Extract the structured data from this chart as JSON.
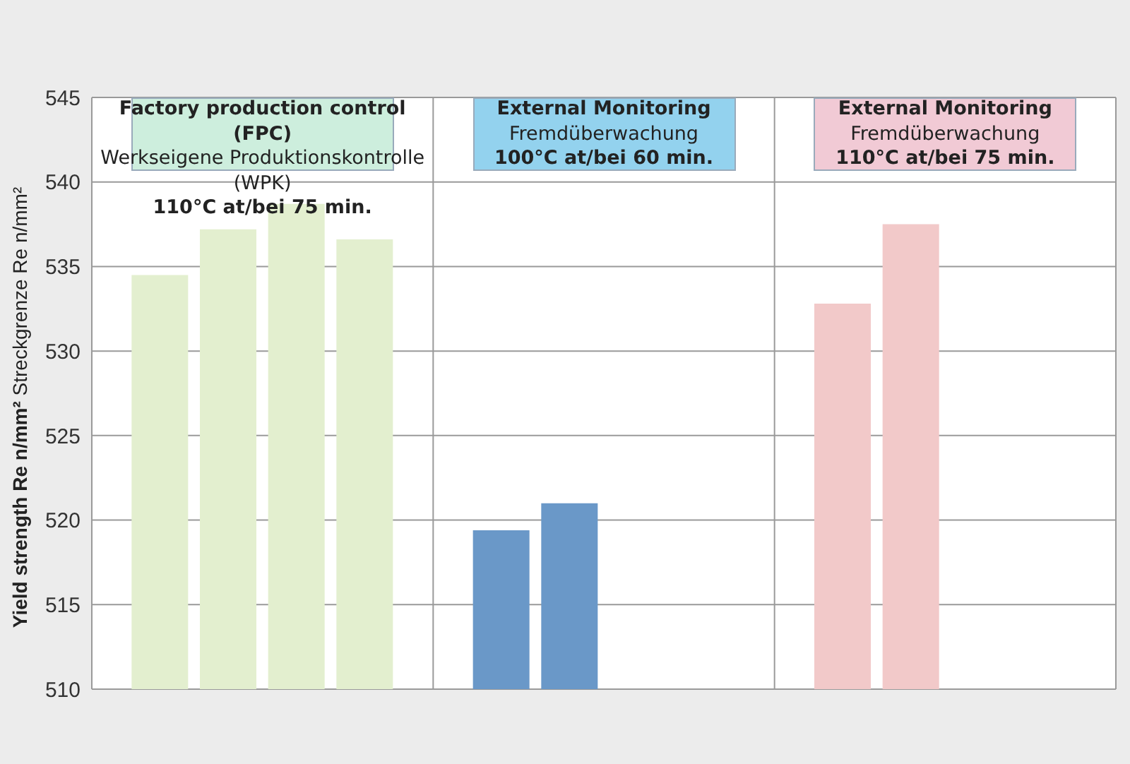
{
  "chart_data": {
    "type": "bar",
    "ylabel": "Yield strength Re n/mm²\nStreckgrenze Re n/mm²",
    "annotations": [
      "Factory production control (FPC)\nWerkseigene Produktionskontrolle\n(WPK)\n110°C at/bei 75 min.",
      "External Monitoring\nFremdüberwachung\n100°C at/bei 60 min.",
      "External Monitoring\nFremdüberwachung\n110°C at/bei 75 min."
    ],
    "categories": [
      null,
      null,
      null,
      null,
      null,
      null,
      null,
      null,
      null,
      null,
      null,
      null,
      null,
      null,
      null
    ],
    "values": [
      534.5,
      537.2,
      538.7,
      536.6,
      null,
      519.4,
      521.0,
      null,
      null,
      null,
      532.8,
      537.5,
      null,
      null,
      null
    ],
    "colors": [
      "#e3efcf",
      "#e3efcf",
      "#e3efcf",
      "#e3efcf",
      "#e3efcf",
      "#6a98c8",
      "#6a98c8",
      "#6a98c8",
      "#6a98c8",
      "#6a98c8",
      "#f2c9c9",
      "#f2c9c9",
      "#f2c9c9",
      "#f2c9c9",
      "#f2c9c9"
    ],
    "ylim": [
      510,
      545
    ],
    "yticks": [
      510,
      515,
      520,
      525,
      530,
      535,
      540,
      545
    ],
    "grid": true
  }
}
